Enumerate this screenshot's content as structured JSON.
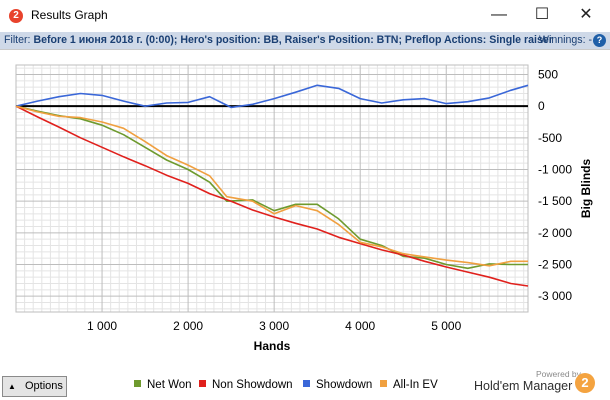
{
  "window": {
    "title": "Results Graph",
    "app_icon": "2",
    "buttons": [
      "minimize",
      "maximize",
      "close"
    ]
  },
  "filter": {
    "label": "Filter:",
    "value": "Before 1 июня 2018 г. (0:00); Hero's position: BB, Raiser's Position: BTN; Preflop Actions: Single raiser",
    "winnings_label": "Winnings: -",
    "help_icon": "?"
  },
  "options_button": {
    "label": "Options"
  },
  "branding": {
    "powered_by": "Powered by",
    "name": "Hold'em Manager",
    "logo": "2"
  },
  "chart_data": {
    "type": "line",
    "xlabel": "Hands",
    "ylabel": "Big Blinds",
    "xlim": [
      0,
      5950
    ],
    "ylim": [
      -3250,
      650
    ],
    "x_ticks": [
      1000,
      2000,
      3000,
      4000,
      5000
    ],
    "x_tick_labels": [
      "1 000",
      "2 000",
      "3 000",
      "4 000",
      "5 000"
    ],
    "y_ticks": [
      500,
      0,
      -500,
      -1000,
      -1500,
      -2000,
      -2500,
      -3000
    ],
    "y_tick_labels": [
      "500",
      "0",
      "-500",
      "-1 000",
      "-1 500",
      "-2 000",
      "-2 500",
      "-3 000"
    ],
    "grid": true,
    "y_axis_side": "right",
    "legend_position": "bottom",
    "series": [
      {
        "name": "Net Won",
        "color": "#6e9a2e",
        "x": [
          0,
          250,
          500,
          750,
          1000,
          1250,
          1500,
          1750,
          2000,
          2250,
          2450,
          2750,
          3000,
          3250,
          3500,
          3750,
          4000,
          4250,
          4500,
          4750,
          5000,
          5250,
          5500,
          5750,
          5950
        ],
        "y": [
          0,
          -80,
          -150,
          -200,
          -300,
          -450,
          -650,
          -850,
          -1000,
          -1200,
          -1500,
          -1480,
          -1650,
          -1550,
          -1550,
          -1780,
          -2100,
          -2200,
          -2370,
          -2400,
          -2500,
          -2560,
          -2490,
          -2500,
          -2500
        ]
      },
      {
        "name": "Non Showdown",
        "color": "#e0201c",
        "x": [
          0,
          250,
          500,
          750,
          1000,
          1250,
          1500,
          1750,
          2000,
          2250,
          2500,
          2750,
          3000,
          3250,
          3500,
          3750,
          4000,
          4250,
          4500,
          4750,
          5000,
          5250,
          5500,
          5750,
          5950
        ],
        "y": [
          0,
          -170,
          -330,
          -500,
          -650,
          -800,
          -940,
          -1090,
          -1220,
          -1380,
          -1500,
          -1640,
          -1750,
          -1850,
          -1940,
          -2070,
          -2170,
          -2270,
          -2350,
          -2450,
          -2540,
          -2620,
          -2700,
          -2800,
          -2840
        ]
      },
      {
        "name": "Showdown",
        "color": "#3a67d8",
        "x": [
          0,
          250,
          500,
          750,
          1000,
          1250,
          1500,
          1750,
          2000,
          2250,
          2500,
          2750,
          3000,
          3250,
          3500,
          3750,
          4000,
          4250,
          4500,
          4750,
          5000,
          5250,
          5500,
          5750,
          5950
        ],
        "y": [
          0,
          80,
          150,
          200,
          170,
          80,
          0,
          50,
          60,
          150,
          -20,
          30,
          120,
          220,
          330,
          280,
          120,
          50,
          100,
          120,
          40,
          70,
          130,
          250,
          330
        ]
      },
      {
        "name": "All-In EV",
        "color": "#f0a040",
        "x": [
          0,
          250,
          500,
          750,
          1000,
          1250,
          1500,
          1750,
          2000,
          2250,
          2450,
          2750,
          3000,
          3250,
          3500,
          3750,
          4000,
          4250,
          4500,
          4750,
          5000,
          5250,
          5500,
          5750,
          5950
        ],
        "y": [
          0,
          -90,
          -160,
          -180,
          -250,
          -350,
          -560,
          -780,
          -930,
          -1100,
          -1430,
          -1500,
          -1700,
          -1570,
          -1650,
          -1870,
          -2150,
          -2220,
          -2330,
          -2380,
          -2430,
          -2470,
          -2520,
          -2450,
          -2450
        ]
      }
    ]
  }
}
